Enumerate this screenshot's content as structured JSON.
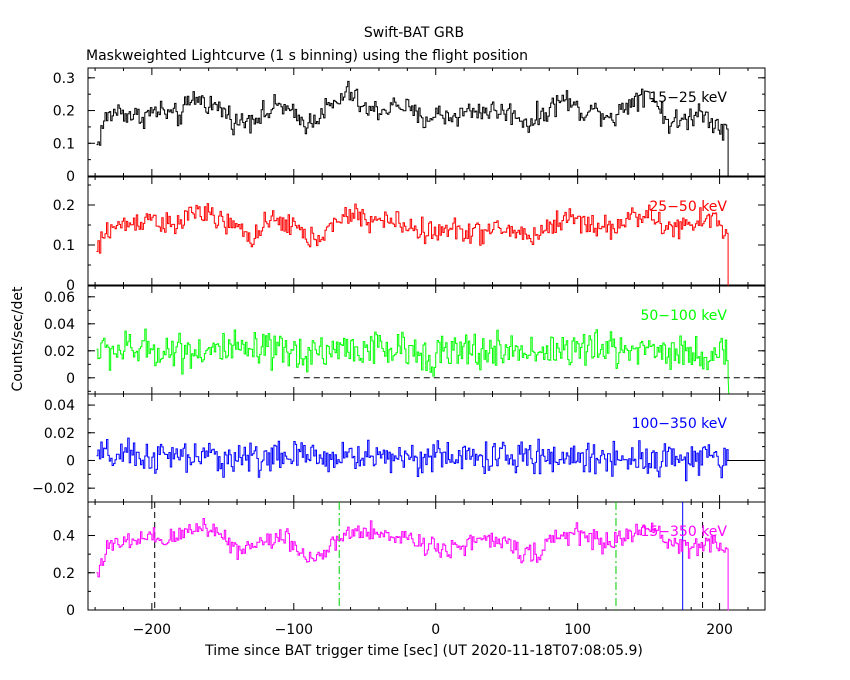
{
  "header": {
    "title": "Swift-BAT GRB",
    "subtitle": "Maskweighted Lightcurve (1 s binning) using the flight position"
  },
  "axes": {
    "ylabel": "Counts/sec/det",
    "xlabel": "Time since BAT trigger time [sec] (UT 2020-11-18T07:08:05.9)",
    "x_ticks": [
      "−200",
      "−100",
      "0",
      "100",
      "200"
    ]
  },
  "chart_data": [
    {
      "type": "line",
      "panel": "15-25 keV",
      "color": "#000000",
      "xlim": [
        -245,
        232
      ],
      "ylim": [
        0,
        0.33
      ],
      "y_ticks": [
        "0",
        "0.1",
        "0.2",
        "0.3"
      ],
      "y_tick_values": [
        0,
        0.1,
        0.2,
        0.3
      ],
      "series": [
        {
          "name": "15−25 keV",
          "x_start": -239,
          "x_end": 205,
          "anchors": [
            [
              -239,
              0.09
            ],
            [
              -234,
              0.17
            ],
            [
              -225,
              0.2
            ],
            [
              -210,
              0.18
            ],
            [
              -195,
              0.2
            ],
            [
              -182,
              0.18
            ],
            [
              -170,
              0.24
            ],
            [
              -160,
              0.22
            ],
            [
              -150,
              0.2
            ],
            [
              -140,
              0.16
            ],
            [
              -130,
              0.18
            ],
            [
              -120,
              0.19
            ],
            [
              -110,
              0.22
            ],
            [
              -100,
              0.18
            ],
            [
              -90,
              0.16
            ],
            [
              -80,
              0.2
            ],
            [
              -70,
              0.22
            ],
            [
              -62,
              0.26
            ],
            [
              -50,
              0.2
            ],
            [
              -40,
              0.2
            ],
            [
              -25,
              0.22
            ],
            [
              -10,
              0.17
            ],
            [
              0,
              0.19
            ],
            [
              10,
              0.18
            ],
            [
              25,
              0.2
            ],
            [
              40,
              0.2
            ],
            [
              55,
              0.19
            ],
            [
              65,
              0.16
            ],
            [
              75,
              0.19
            ],
            [
              90,
              0.24
            ],
            [
              100,
              0.2
            ],
            [
              115,
              0.2
            ],
            [
              125,
              0.18
            ],
            [
              140,
              0.24
            ],
            [
              150,
              0.26
            ],
            [
              158,
              0.2
            ],
            [
              165,
              0.16
            ],
            [
              175,
              0.17
            ],
            [
              185,
              0.2
            ],
            [
              195,
              0.17
            ],
            [
              205,
              0.14
            ]
          ],
          "noise": 0.03,
          "dashed_zero_from": -100,
          "tail": "drop"
        }
      ]
    },
    {
      "type": "line",
      "panel": "25-50 keV",
      "color": "#ff0000",
      "xlim": [
        -245,
        232
      ],
      "ylim": [
        0,
        0.27
      ],
      "y_ticks": [
        "0",
        "0.1",
        "0.2"
      ],
      "y_tick_values": [
        0,
        0.1,
        0.2
      ],
      "series": [
        {
          "name": "25−50 keV",
          "x_start": -239,
          "x_end": 205,
          "anchors": [
            [
              -239,
              0.08
            ],
            [
              -232,
              0.14
            ],
            [
              -220,
              0.15
            ],
            [
              -200,
              0.17
            ],
            [
              -185,
              0.14
            ],
            [
              -170,
              0.19
            ],
            [
              -160,
              0.17
            ],
            [
              -145,
              0.15
            ],
            [
              -130,
              0.12
            ],
            [
              -115,
              0.16
            ],
            [
              -100,
              0.15
            ],
            [
              -90,
              0.11
            ],
            [
              -80,
              0.13
            ],
            [
              -70,
              0.15
            ],
            [
              -60,
              0.18
            ],
            [
              -45,
              0.16
            ],
            [
              -30,
              0.16
            ],
            [
              -15,
              0.14
            ],
            [
              0,
              0.13
            ],
            [
              15,
              0.14
            ],
            [
              30,
              0.13
            ],
            [
              45,
              0.14
            ],
            [
              60,
              0.13
            ],
            [
              70,
              0.12
            ],
            [
              80,
              0.15
            ],
            [
              95,
              0.17
            ],
            [
              110,
              0.15
            ],
            [
              125,
              0.14
            ],
            [
              140,
              0.18
            ],
            [
              155,
              0.16
            ],
            [
              165,
              0.14
            ],
            [
              180,
              0.15
            ],
            [
              195,
              0.17
            ],
            [
              205,
              0.13
            ]
          ],
          "noise": 0.025,
          "dashed_zero_from": -100,
          "tail": "drop"
        }
      ]
    },
    {
      "type": "line",
      "panel": "50-100 keV",
      "color": "#00ff00",
      "xlim": [
        -245,
        232
      ],
      "ylim": [
        -0.012,
        0.068
      ],
      "y_ticks": [
        "0",
        "0.02",
        "0.04",
        "0.06"
      ],
      "y_tick_values": [
        0,
        0.02,
        0.04,
        0.06
      ],
      "series": [
        {
          "name": "50−100 keV",
          "x_start": -239,
          "x_end": 205,
          "anchors": [
            [
              -239,
              0.02
            ],
            [
              -200,
              0.021
            ],
            [
              -150,
              0.02
            ],
            [
              -100,
              0.018
            ],
            [
              -60,
              0.022
            ],
            [
              0,
              0.018
            ],
            [
              50,
              0.02
            ],
            [
              100,
              0.021
            ],
            [
              150,
              0.022
            ],
            [
              205,
              0.015
            ]
          ],
          "noise": 0.012,
          "dashed_zero_from": -100,
          "tail": "drop"
        }
      ]
    },
    {
      "type": "line",
      "panel": "100-350 keV",
      "color": "#0000ff",
      "xlim": [
        -245,
        232
      ],
      "ylim": [
        -0.03,
        0.048
      ],
      "y_ticks": [
        "−0.02",
        "0",
        "0.02",
        "0.04"
      ],
      "y_tick_values": [
        -0.02,
        0,
        0.02,
        0.04
      ],
      "series": [
        {
          "name": "100−350 keV",
          "x_start": -239,
          "x_end": 205,
          "anchors": [
            [
              -239,
              0.003
            ],
            [
              -150,
              0.002
            ],
            [
              -50,
              0.003
            ],
            [
              50,
              0.002
            ],
            [
              150,
              0.002
            ],
            [
              205,
              0.0
            ]
          ],
          "noise": 0.01,
          "dashed_zero_from": 205,
          "tail": "flat"
        }
      ]
    },
    {
      "type": "line",
      "panel": "15-350 keV",
      "color": "#ff00ff",
      "xlim": [
        -245,
        232
      ],
      "ylim": [
        0,
        0.58
      ],
      "y_ticks": [
        "0",
        "0.2",
        "0.4"
      ],
      "y_tick_values": [
        0,
        0.2,
        0.4
      ],
      "series": [
        {
          "name": "15−350 keV",
          "x_start": -239,
          "x_end": 205,
          "anchors": [
            [
              -239,
              0.2
            ],
            [
              -232,
              0.33
            ],
            [
              -220,
              0.36
            ],
            [
              -205,
              0.38
            ],
            [
              -190,
              0.37
            ],
            [
              -175,
              0.42
            ],
            [
              -165,
              0.46
            ],
            [
              -150,
              0.4
            ],
            [
              -140,
              0.32
            ],
            [
              -130,
              0.35
            ],
            [
              -115,
              0.38
            ],
            [
              -105,
              0.4
            ],
            [
              -95,
              0.3
            ],
            [
              -85,
              0.28
            ],
            [
              -75,
              0.32
            ],
            [
              -65,
              0.4
            ],
            [
              -55,
              0.42
            ],
            [
              -40,
              0.4
            ],
            [
              -25,
              0.4
            ],
            [
              -10,
              0.36
            ],
            [
              5,
              0.33
            ],
            [
              20,
              0.35
            ],
            [
              35,
              0.38
            ],
            [
              50,
              0.35
            ],
            [
              60,
              0.32
            ],
            [
              70,
              0.3
            ],
            [
              80,
              0.36
            ],
            [
              95,
              0.42
            ],
            [
              110,
              0.38
            ],
            [
              125,
              0.36
            ],
            [
              140,
              0.42
            ],
            [
              152,
              0.44
            ],
            [
              165,
              0.36
            ],
            [
              180,
              0.33
            ],
            [
              195,
              0.38
            ],
            [
              205,
              0.3
            ]
          ],
          "noise": 0.045,
          "dashed_zero_from": -100,
          "tail": "drop"
        }
      ],
      "vertical_markers": [
        {
          "x": -198,
          "color": "#000000",
          "style": "dashed"
        },
        {
          "x": -68,
          "color": "#00cc00",
          "style": "dashdot"
        },
        {
          "x": 127,
          "color": "#00cc00",
          "style": "dashdot"
        },
        {
          "x": 174,
          "color": "#0000ff",
          "style": "solid"
        },
        {
          "x": 188,
          "color": "#000000",
          "style": "dashed"
        }
      ]
    }
  ]
}
